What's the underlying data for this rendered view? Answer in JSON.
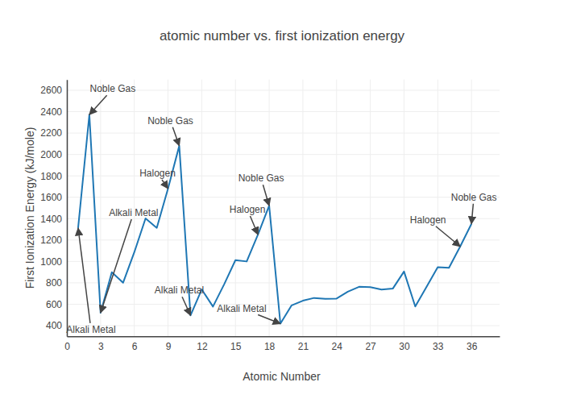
{
  "chart_data": {
    "type": "line",
    "title": "atomic number vs. first ionization energy",
    "x_label": "Atomic Number",
    "y_label": "First Ionization Energy (kJ/mole)",
    "x": [
      1,
      2,
      3,
      4,
      5,
      6,
      7,
      8,
      9,
      10,
      11,
      12,
      13,
      14,
      15,
      16,
      17,
      18,
      19,
      20,
      21,
      22,
      23,
      24,
      25,
      26,
      27,
      28,
      29,
      30,
      31,
      32,
      33,
      34,
      35,
      36
    ],
    "values": [
      1312,
      2372,
      520,
      900,
      801,
      1086,
      1402,
      1314,
      1681,
      2081,
      496,
      738,
      578,
      787,
      1012,
      1000,
      1251,
      1521,
      419,
      590,
      633,
      659,
      651,
      653,
      717,
      763,
      760,
      737,
      746,
      906,
      579,
      762,
      947,
      941,
      1140,
      1351
    ],
    "color": "#1f77b4",
    "xlim": [
      0,
      38.5
    ],
    "xticks": [
      0,
      3,
      6,
      9,
      12,
      15,
      18,
      21,
      24,
      27,
      30,
      33,
      36
    ],
    "ylim": [
      300,
      2700
    ],
    "yticks": [
      400,
      600,
      800,
      1000,
      1200,
      1400,
      1600,
      1800,
      2000,
      2200,
      2400,
      2600
    ],
    "grid": true,
    "annotations": [
      {
        "text": "Noble Gas",
        "x": 2,
        "y": 2372
      },
      {
        "text": "Alkali Metal",
        "x": 1,
        "y": 1312
      },
      {
        "text": "Alkali Metal",
        "x": 3,
        "y": 520
      },
      {
        "text": "Halogen",
        "x": 9,
        "y": 1681
      },
      {
        "text": "Noble Gas",
        "x": 10,
        "y": 2081
      },
      {
        "text": "Alkali Metal",
        "x": 11,
        "y": 496
      },
      {
        "text": "Halogen",
        "x": 17,
        "y": 1251
      },
      {
        "text": "Noble Gas",
        "x": 18,
        "y": 1521
      },
      {
        "text": "Alkali Metal",
        "x": 19,
        "y": 419
      },
      {
        "text": "Halogen",
        "x": 35,
        "y": 1140
      },
      {
        "text": "Noble Gas",
        "x": 36,
        "y": 1351
      }
    ]
  }
}
